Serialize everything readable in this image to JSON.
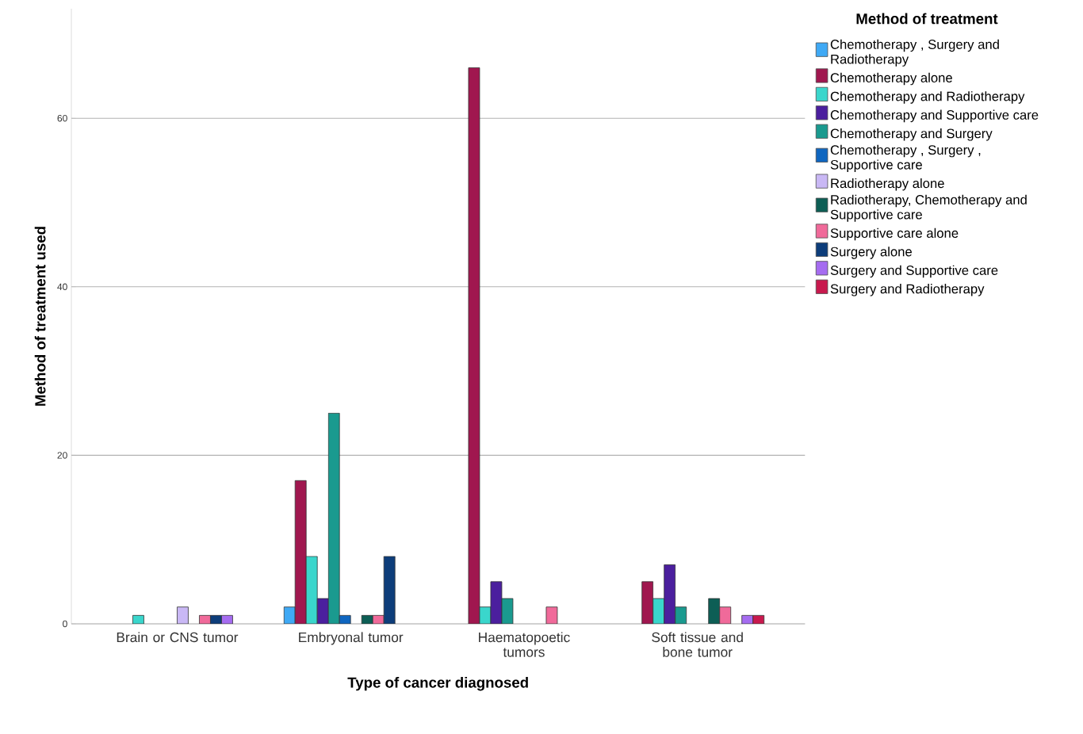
{
  "chart_data": {
    "type": "bar",
    "xlabel": "Type of cancer diagnosed",
    "ylabel": "Method of treatment used",
    "legend_title": "Method of treatment",
    "categories": [
      "Brain or CNS tumor",
      "Embryonal tumor",
      "Haematopoetic tumors",
      "Soft tissue and bone tumor"
    ],
    "series": [
      {
        "name": "Chemotherapy , Surgery and Radiotherapy",
        "color": "#3fa9f5",
        "values": [
          null,
          2,
          null,
          null
        ]
      },
      {
        "name": "Chemotherapy alone",
        "color": "#a0174f",
        "values": [
          null,
          17,
          66,
          5
        ]
      },
      {
        "name": "Chemotherapy and Radiotherapy",
        "color": "#3ad6cc",
        "values": [
          1,
          8,
          2,
          3
        ]
      },
      {
        "name": "Chemotherapy and Supportive care",
        "color": "#4b1f9e",
        "values": [
          null,
          3,
          5,
          7
        ]
      },
      {
        "name": "Chemotherapy and Surgery",
        "color": "#1a9a8f",
        "values": [
          null,
          25,
          3,
          2
        ]
      },
      {
        "name": "Chemotherapy , Surgery , Supportive care",
        "color": "#0f66c0",
        "values": [
          null,
          1,
          null,
          null
        ]
      },
      {
        "name": "Radiotherapy alone",
        "color": "#c9b8f5",
        "values": [
          2,
          null,
          null,
          null
        ]
      },
      {
        "name": "Radiotherapy, Chemotherapy and Supportive care",
        "color": "#0d5e55",
        "values": [
          null,
          1,
          null,
          3
        ]
      },
      {
        "name": "Supportive care alone",
        "color": "#f06a9a",
        "values": [
          1,
          1,
          2,
          2
        ]
      },
      {
        "name": "Surgery alone",
        "color": "#0d3d7a",
        "values": [
          1,
          8,
          null,
          null
        ]
      },
      {
        "name": "Surgery and Supportive care",
        "color": "#a56cf0",
        "values": [
          1,
          null,
          null,
          1
        ]
      },
      {
        "name": "Surgery and Radiotherapy",
        "color": "#c8194e",
        "values": [
          null,
          null,
          null,
          1
        ]
      }
    ],
    "ylim": [
      0,
      73
    ],
    "yticks": [
      0,
      20,
      40,
      60
    ],
    "grid": "y",
    "legend": "right"
  }
}
